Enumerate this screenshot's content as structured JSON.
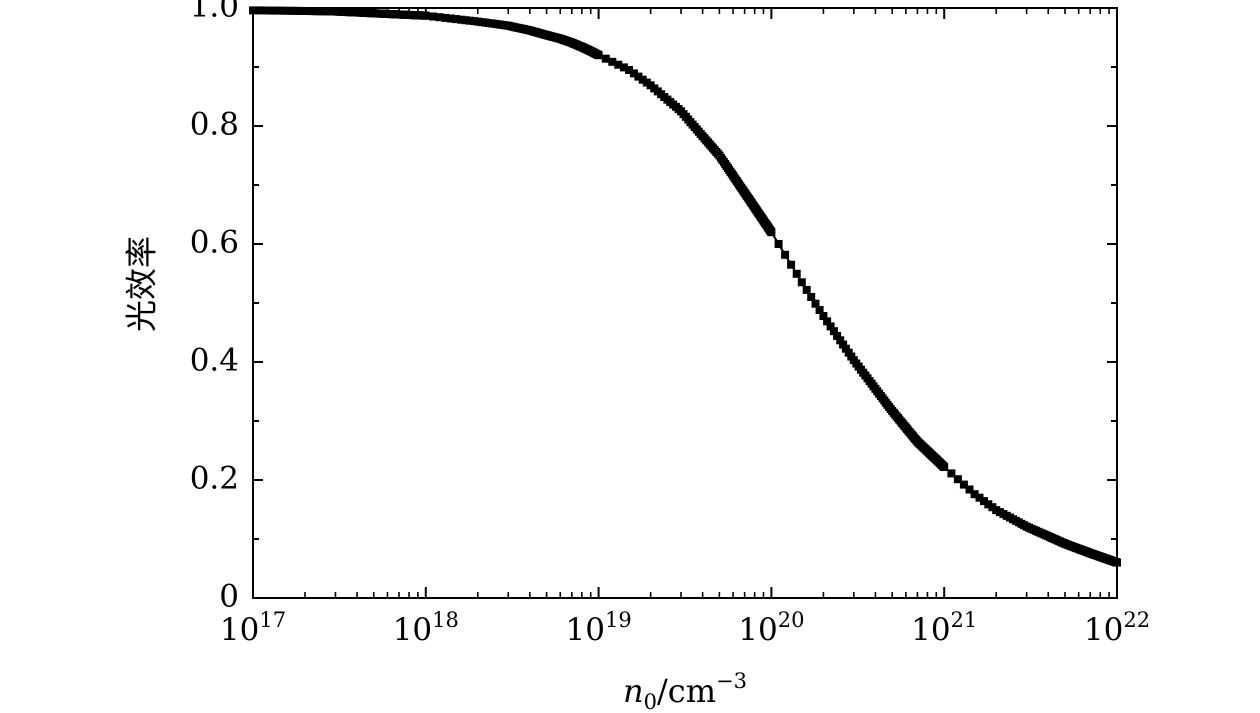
{
  "chart_data": {
    "type": "scatter",
    "title": "",
    "xlabel": {
      "var": "n",
      "sub": "0",
      "unit": "/cm",
      "sup": "−3"
    },
    "ylabel": "光效率",
    "x_scale": "log",
    "xlim": [
      1e+17,
      1e+22
    ],
    "ylim": [
      0,
      1.0
    ],
    "x_ticks": [
      {
        "base": "10",
        "exp": "17"
      },
      {
        "base": "10",
        "exp": "18"
      },
      {
        "base": "10",
        "exp": "19"
      },
      {
        "base": "10",
        "exp": "20"
      },
      {
        "base": "10",
        "exp": "21"
      },
      {
        "base": "10",
        "exp": "22"
      }
    ],
    "y_ticks": [
      "0",
      "0.2",
      "0.4",
      "0.6",
      "0.8",
      "1.0"
    ],
    "grid": false,
    "legend": "none",
    "marker": "square",
    "line": "solid",
    "color": "#000000",
    "series": [
      {
        "x": [
          1e+17,
          2e+17,
          3e+17,
          5e+17,
          1e+18,
          2e+18,
          3e+18,
          4e+18,
          5e+18,
          6e+18,
          7e+18,
          8e+18,
          9e+18,
          1e+19,
          1.5e+19,
          2e+19,
          3e+19,
          5e+19,
          7e+19,
          1e+20,
          1.5e+20,
          2e+20,
          3e+20,
          5e+20,
          7e+20,
          1e+21,
          1.5e+21,
          2e+21,
          3e+21,
          5e+21,
          7e+21,
          1e+22
        ],
        "y": [
          0.996,
          0.995,
          0.994,
          0.991,
          0.987,
          0.977,
          0.97,
          0.962,
          0.954,
          0.948,
          0.941,
          0.934,
          0.927,
          0.92,
          0.895,
          0.869,
          0.825,
          0.75,
          0.687,
          0.62,
          0.535,
          0.478,
          0.403,
          0.317,
          0.265,
          0.222,
          0.176,
          0.149,
          0.121,
          0.092,
          0.076,
          0.06
        ]
      }
    ]
  }
}
